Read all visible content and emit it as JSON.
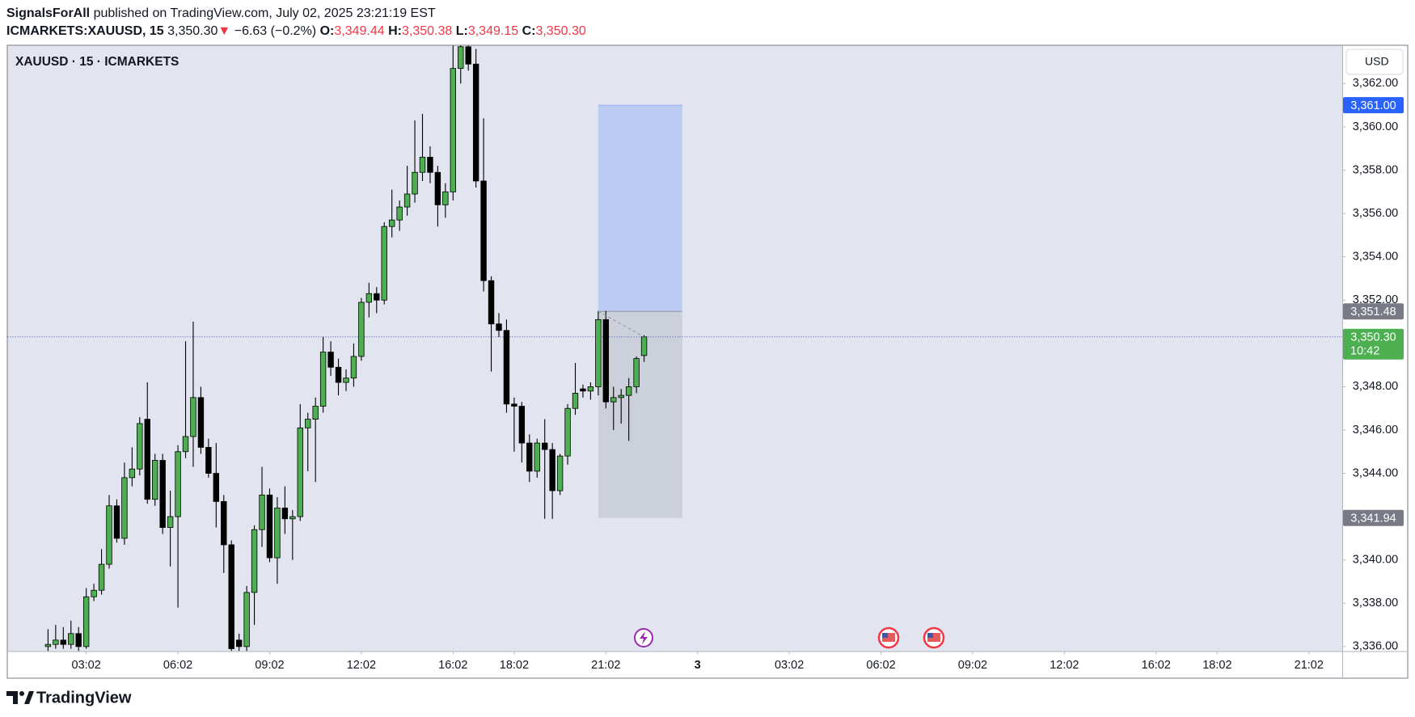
{
  "header": {
    "author": "SignalsForAll",
    "published": "published on TradingView.com, July 02, 2025 23:21:19 EST",
    "symbol": "ICMARKETS:XAUUSD, 15",
    "last": "3,350.30",
    "arrow": "▼",
    "change": "−6.63 (−0.2%)",
    "o_label": "O:",
    "o": "3,349.44",
    "h_label": "H:",
    "h": "3,350.38",
    "l_label": "L:",
    "l": "3,349.15",
    "c_label": "C:",
    "c": "3,350.30"
  },
  "legend": "XAUUSD · 15 · ICMARKETS",
  "currency": "USD",
  "footer": "TradingView",
  "chart_data": {
    "type": "candlestick",
    "up_color": "#4caf50",
    "down_color": "#000000",
    "open": [
      3336.0,
      3336.1,
      3336.3,
      3336.1,
      3336.6,
      3336.0,
      3338.3,
      3338.6,
      3339.8,
      3342.5,
      3341.0,
      3343.8,
      3344.2,
      3346.5,
      3342.8,
      3344.6,
      3341.5,
      3342.0,
      3345.0,
      3345.7,
      3347.5,
      3345.2,
      3344.0,
      3342.7,
      3340.7,
      3336.3,
      3336.0,
      3338.5,
      3341.4,
      3343.0,
      3340.1,
      3342.4,
      3341.9,
      3342.0,
      3346.1,
      3346.5,
      3347.1,
      3349.6,
      3348.9,
      3348.2,
      3348.4,
      3349.4,
      3351.9,
      3352.3,
      3352.0,
      3355.4,
      3355.7,
      3356.3,
      3356.9,
      3357.9,
      3358.6,
      3357.9,
      3356.4,
      3357.0,
      3362.7,
      3363.7,
      3362.9,
      3357.5,
      3352.9,
      3350.9,
      3350.6,
      3347.2,
      3347.1,
      3345.4,
      3344.1,
      3345.4,
      3345.1,
      3343.2,
      3344.8,
      3347.0,
      3347.9,
      3347.8,
      3348.0,
      3351.1,
      3347.3,
      3347.5,
      3347.6,
      3348.0,
      3349.44
    ],
    "high": [
      3336.8,
      3337.0,
      3336.9,
      3337.2,
      3336.9,
      3338.7,
      3338.9,
      3340.5,
      3343.0,
      3342.8,
      3344.5,
      3345.2,
      3346.6,
      3348.2,
      3344.9,
      3344.9,
      3343.2,
      3345.3,
      3350.1,
      3351.0,
      3348.0,
      3345.6,
      3345.4,
      3343.0,
      3340.9,
      3336.6,
      3338.8,
      3341.6,
      3344.3,
      3343.3,
      3342.9,
      3343.4,
      3342.3,
      3347.2,
      3346.8,
      3347.5,
      3350.3,
      3350.1,
      3349.3,
      3348.8,
      3350.0,
      3352.1,
      3352.8,
      3352.6,
      3355.6,
      3357.1,
      3356.6,
      3358.2,
      3360.3,
      3360.6,
      3359.1,
      3358.2,
      3357.4,
      3363.9,
      3364.5,
      3364.2,
      3363.6,
      3360.4,
      3353.1,
      3351.4,
      3351.1,
      3347.5,
      3347.3,
      3345.8,
      3345.6,
      3346.5,
      3345.4,
      3344.9,
      3347.2,
      3349.1,
      3348.1,
      3348.2,
      3351.5,
      3351.5,
      3348.0,
      3347.9,
      3348.4,
      3349.4,
      3350.38
    ],
    "low": [
      3335.8,
      3335.9,
      3335.9,
      3335.9,
      3335.8,
      3335.9,
      3338.1,
      3338.4,
      3339.6,
      3340.8,
      3340.7,
      3343.4,
      3343.9,
      3342.6,
      3342.5,
      3341.2,
      3339.7,
      3337.8,
      3344.7,
      3344.3,
      3344.9,
      3343.8,
      3341.5,
      3339.4,
      3335.8,
      3335.8,
      3335.8,
      3337.0,
      3340.6,
      3339.9,
      3338.9,
      3341.2,
      3340.0,
      3341.8,
      3344.1,
      3343.6,
      3346.8,
      3348.5,
      3347.6,
      3347.8,
      3348.0,
      3349.2,
      3351.2,
      3351.4,
      3351.8,
      3354.9,
      3355.2,
      3355.9,
      3356.5,
      3357.5,
      3357.4,
      3355.4,
      3355.8,
      3356.6,
      3362.0,
      3362.6,
      3357.2,
      3352.4,
      3348.7,
      3350.3,
      3346.8,
      3345.0,
      3344.5,
      3343.6,
      3343.8,
      3341.9,
      3341.9,
      3343.0,
      3344.4,
      3346.7,
      3347.5,
      3347.4,
      3347.6,
      3347.0,
      3346.0,
      3346.3,
      3345.5,
      3347.7,
      3349.15
    ],
    "close": [
      3336.1,
      3336.3,
      3336.1,
      3336.6,
      3336.0,
      3338.3,
      3338.6,
      3339.8,
      3342.5,
      3341.0,
      3343.8,
      3344.2,
      3346.3,
      3342.8,
      3344.6,
      3341.5,
      3342.0,
      3345.0,
      3345.7,
      3347.5,
      3345.2,
      3344.0,
      3342.7,
      3340.7,
      3335.9,
      3336.0,
      3338.5,
      3341.4,
      3343.0,
      3340.1,
      3342.4,
      3341.9,
      3342.0,
      3346.1,
      3346.5,
      3347.1,
      3349.6,
      3348.9,
      3348.2,
      3348.4,
      3349.4,
      3351.9,
      3352.3,
      3352.0,
      3355.4,
      3355.7,
      3356.3,
      3356.9,
      3357.9,
      3358.6,
      3357.9,
      3356.4,
      3357.0,
      3362.7,
      3363.7,
      3362.9,
      3357.5,
      3352.9,
      3350.9,
      3350.6,
      3347.2,
      3347.1,
      3345.4,
      3344.1,
      3345.4,
      3345.1,
      3343.2,
      3344.8,
      3347.0,
      3347.7,
      3347.8,
      3348.0,
      3351.1,
      3347.3,
      3347.5,
      3347.6,
      3348.0,
      3349.3,
      3350.3
    ],
    "xlim": [
      -5.28,
      169.36
    ],
    "xticks": [
      {
        "value": 5,
        "label": "03:02"
      },
      {
        "value": 17,
        "label": "06:02"
      },
      {
        "value": 29,
        "label": "09:02"
      },
      {
        "value": 41,
        "label": "12:02"
      },
      {
        "value": 53,
        "label": "16:02"
      },
      {
        "value": 61,
        "label": "18:02"
      },
      {
        "value": 73,
        "label": "21:02"
      },
      {
        "value": 85,
        "label": "3"
      },
      {
        "value": 97,
        "label": "03:02"
      },
      {
        "value": 109,
        "label": "06:02"
      },
      {
        "value": 121,
        "label": "09:02"
      },
      {
        "value": 133,
        "label": "12:02"
      },
      {
        "value": 145,
        "label": "16:02"
      },
      {
        "value": 153,
        "label": "18:02"
      },
      {
        "value": 165,
        "label": "21:02"
      }
    ],
    "ylim": [
      3335.79,
      3363.75
    ],
    "yticks": [
      {
        "value": 3336,
        "label": "3,336.00"
      },
      {
        "value": 3338,
        "label": "3,338.00"
      },
      {
        "value": 3340,
        "label": "3,340.00"
      },
      {
        "value": 3342,
        "label": "3,342.00"
      },
      {
        "value": 3344,
        "label": "3,344.00"
      },
      {
        "value": 3346,
        "label": "3,346.00"
      },
      {
        "value": 3348,
        "label": "3,348.00"
      },
      {
        "value": 3350,
        "label": "3,350.00"
      },
      {
        "value": 3352,
        "label": "3,352.00"
      },
      {
        "value": 3354,
        "label": "3,354.00"
      },
      {
        "value": 3356,
        "label": "3,356.00"
      },
      {
        "value": 3358,
        "label": "3,358.00"
      },
      {
        "value": 3360,
        "label": "3,360.00"
      },
      {
        "value": 3362,
        "label": "3,362.00"
      }
    ],
    "position": {
      "x": [
        72,
        83
      ],
      "target": {
        "value": 3361.0,
        "label": "3,361.00"
      },
      "entry": {
        "value": 3351.48,
        "label": "3,351.48"
      },
      "stop": {
        "value": 3341.94,
        "label": "3,341.94"
      }
    },
    "current_price": {
      "value": 3350.3,
      "label": "3,350.30",
      "countdown": "10:42"
    }
  }
}
